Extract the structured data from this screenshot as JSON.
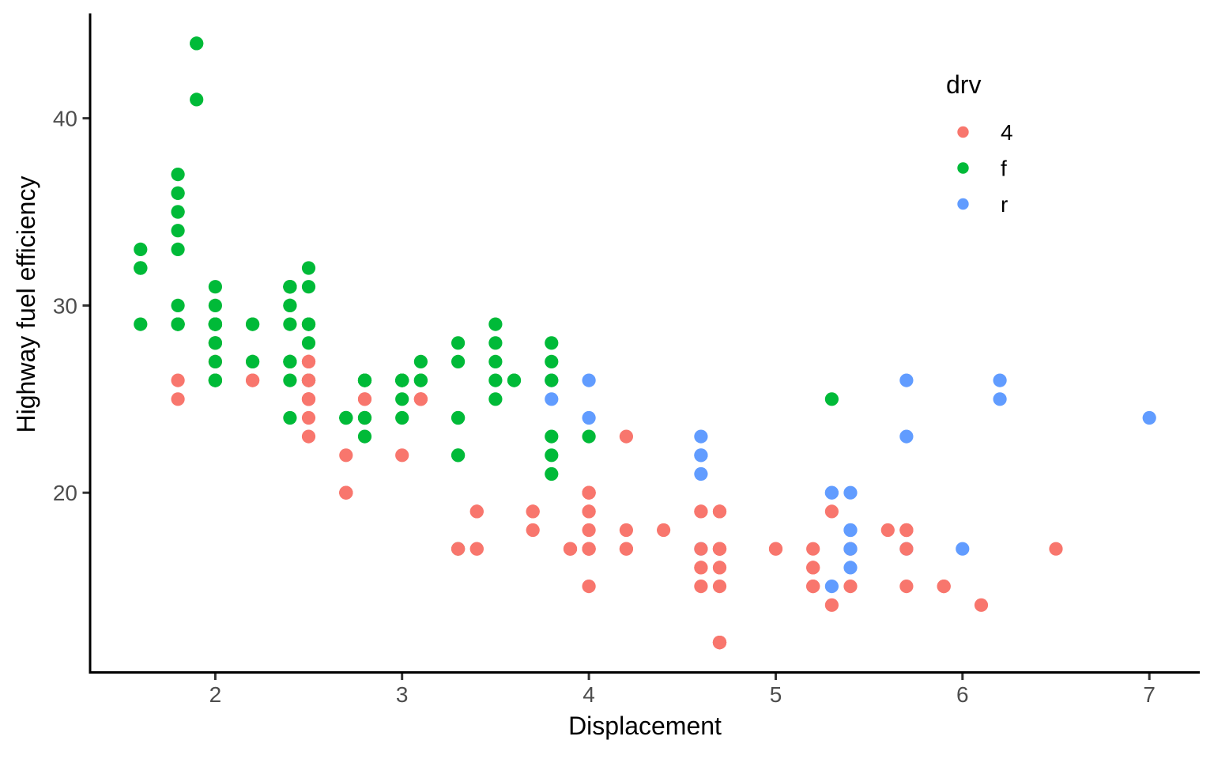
{
  "chart_data": {
    "type": "scatter",
    "title": "",
    "xlabel": "Displacement",
    "ylabel": "Highway fuel efficiency",
    "xlim": [
      1.33,
      7.27
    ],
    "ylim": [
      10.4,
      45.6
    ],
    "x_ticks": [
      2,
      3,
      4,
      5,
      6,
      7
    ],
    "y_ticks": [
      20,
      30,
      40
    ],
    "grid": false,
    "legend": {
      "title": "drv",
      "position": "inside-top-right",
      "entries": [
        {
          "label": "4",
          "color": "#F8766D"
        },
        {
          "label": "f",
          "color": "#00BA38"
        },
        {
          "label": "r",
          "color": "#619CFF"
        }
      ]
    },
    "groups": {
      "4": "#F8766D",
      "f": "#00BA38",
      "r": "#619CFF"
    },
    "points": [
      [
        1.8,
        29,
        "f"
      ],
      [
        1.8,
        29,
        "f"
      ],
      [
        2,
        31,
        "f"
      ],
      [
        2,
        30,
        "f"
      ],
      [
        2.8,
        26,
        "f"
      ],
      [
        2.8,
        26,
        "f"
      ],
      [
        3.1,
        27,
        "f"
      ],
      [
        1.8,
        26,
        "4"
      ],
      [
        1.8,
        25,
        "4"
      ],
      [
        2,
        28,
        "4"
      ],
      [
        2,
        27,
        "4"
      ],
      [
        2.8,
        25,
        "4"
      ],
      [
        2.8,
        25,
        "4"
      ],
      [
        3.1,
        25,
        "4"
      ],
      [
        3.1,
        25,
        "4"
      ],
      [
        2.8,
        24,
        "4"
      ],
      [
        3.1,
        25,
        "4"
      ],
      [
        4.2,
        23,
        "4"
      ],
      [
        5.3,
        20,
        "r"
      ],
      [
        5.3,
        15,
        "r"
      ],
      [
        5.3,
        20,
        "r"
      ],
      [
        5.7,
        17,
        "r"
      ],
      [
        6,
        17,
        "r"
      ],
      [
        5.7,
        26,
        "r"
      ],
      [
        5.7,
        23,
        "r"
      ],
      [
        6.2,
        26,
        "r"
      ],
      [
        6.2,
        25,
        "r"
      ],
      [
        7,
        24,
        "r"
      ],
      [
        5.3,
        19,
        "4"
      ],
      [
        5.3,
        14,
        "4"
      ],
      [
        5.7,
        15,
        "4"
      ],
      [
        6.5,
        17,
        "4"
      ],
      [
        2.4,
        27,
        "f"
      ],
      [
        2.4,
        30,
        "f"
      ],
      [
        3.1,
        26,
        "f"
      ],
      [
        3.5,
        29,
        "f"
      ],
      [
        3.6,
        26,
        "f"
      ],
      [
        2.4,
        24,
        "f"
      ],
      [
        3,
        24,
        "f"
      ],
      [
        3.3,
        22,
        "f"
      ],
      [
        3.3,
        22,
        "f"
      ],
      [
        3.3,
        17,
        "f"
      ],
      [
        3.3,
        24,
        "f"
      ],
      [
        3.3,
        24,
        "f"
      ],
      [
        3.8,
        22,
        "f"
      ],
      [
        3.8,
        21,
        "f"
      ],
      [
        3.8,
        23,
        "f"
      ],
      [
        4,
        23,
        "f"
      ],
      [
        3.7,
        19,
        "4"
      ],
      [
        3.7,
        18,
        "4"
      ],
      [
        3.9,
        17,
        "4"
      ],
      [
        3.9,
        17,
        "4"
      ],
      [
        4.7,
        19,
        "4"
      ],
      [
        4.7,
        19,
        "4"
      ],
      [
        4.7,
        12,
        "4"
      ],
      [
        5.2,
        17,
        "4"
      ],
      [
        5.2,
        15,
        "4"
      ],
      [
        3.9,
        17,
        "4"
      ],
      [
        4.7,
        17,
        "4"
      ],
      [
        4.7,
        12,
        "4"
      ],
      [
        4.7,
        17,
        "4"
      ],
      [
        5.2,
        16,
        "4"
      ],
      [
        5.7,
        18,
        "4"
      ],
      [
        5.9,
        15,
        "4"
      ],
      [
        4.7,
        16,
        "4"
      ],
      [
        4.7,
        12,
        "4"
      ],
      [
        4.7,
        17,
        "4"
      ],
      [
        4.7,
        17,
        "4"
      ],
      [
        4.7,
        16,
        "4"
      ],
      [
        4.7,
        12,
        "4"
      ],
      [
        5.2,
        15,
        "4"
      ],
      [
        5.2,
        16,
        "4"
      ],
      [
        5.7,
        17,
        "4"
      ],
      [
        5.9,
        15,
        "4"
      ],
      [
        4.6,
        17,
        "r"
      ],
      [
        5.4,
        17,
        "r"
      ],
      [
        5.4,
        18,
        "r"
      ],
      [
        4,
        17,
        "4"
      ],
      [
        4,
        17,
        "4"
      ],
      [
        4,
        17,
        "4"
      ],
      [
        4,
        19,
        "4"
      ],
      [
        4.6,
        19,
        "4"
      ],
      [
        5,
        17,
        "4"
      ],
      [
        4.2,
        17,
        "4"
      ],
      [
        4.2,
        17,
        "4"
      ],
      [
        4.6,
        16,
        "4"
      ],
      [
        4.6,
        16,
        "4"
      ],
      [
        4.6,
        17,
        "4"
      ],
      [
        5.4,
        15,
        "4"
      ],
      [
        5.4,
        17,
        "4"
      ],
      [
        3.8,
        26,
        "r"
      ],
      [
        3.8,
        25,
        "r"
      ],
      [
        4,
        26,
        "r"
      ],
      [
        4,
        24,
        "r"
      ],
      [
        4.6,
        21,
        "r"
      ],
      [
        4.6,
        22,
        "r"
      ],
      [
        4.6,
        23,
        "r"
      ],
      [
        4.6,
        22,
        "r"
      ],
      [
        5.4,
        20,
        "r"
      ],
      [
        1.6,
        33,
        "f"
      ],
      [
        1.6,
        32,
        "f"
      ],
      [
        1.6,
        32,
        "f"
      ],
      [
        1.6,
        29,
        "f"
      ],
      [
        1.6,
        32,
        "f"
      ],
      [
        1.8,
        34,
        "f"
      ],
      [
        1.8,
        36,
        "f"
      ],
      [
        1.8,
        36,
        "f"
      ],
      [
        2,
        29,
        "f"
      ],
      [
        2.4,
        26,
        "f"
      ],
      [
        2.4,
        27,
        "f"
      ],
      [
        2.4,
        30,
        "f"
      ],
      [
        2.4,
        31,
        "f"
      ],
      [
        2.5,
        26,
        "f"
      ],
      [
        2.5,
        26,
        "f"
      ],
      [
        3.3,
        28,
        "f"
      ],
      [
        2,
        26,
        "f"
      ],
      [
        2,
        29,
        "f"
      ],
      [
        2,
        28,
        "f"
      ],
      [
        2,
        27,
        "f"
      ],
      [
        2.7,
        24,
        "f"
      ],
      [
        2.7,
        24,
        "f"
      ],
      [
        2.7,
        24,
        "f"
      ],
      [
        3,
        22,
        "4"
      ],
      [
        3.7,
        19,
        "4"
      ],
      [
        4,
        20,
        "4"
      ],
      [
        4.7,
        17,
        "4"
      ],
      [
        4.7,
        12,
        "4"
      ],
      [
        4.7,
        19,
        "4"
      ],
      [
        5.7,
        18,
        "4"
      ],
      [
        6.1,
        14,
        "4"
      ],
      [
        4,
        15,
        "4"
      ],
      [
        4.2,
        18,
        "4"
      ],
      [
        4.4,
        18,
        "4"
      ],
      [
        4.6,
        15,
        "4"
      ],
      [
        5.4,
        17,
        "r"
      ],
      [
        5.4,
        16,
        "r"
      ],
      [
        5.4,
        18,
        "r"
      ],
      [
        4,
        17,
        "4"
      ],
      [
        4,
        19,
        "4"
      ],
      [
        4.6,
        19,
        "4"
      ],
      [
        5,
        17,
        "4"
      ],
      [
        2.4,
        29,
        "f"
      ],
      [
        2.4,
        27,
        "f"
      ],
      [
        2.5,
        31,
        "f"
      ],
      [
        2.5,
        32,
        "f"
      ],
      [
        3.5,
        27,
        "f"
      ],
      [
        3.5,
        26,
        "f"
      ],
      [
        3,
        26,
        "f"
      ],
      [
        3,
        25,
        "f"
      ],
      [
        3.5,
        25,
        "f"
      ],
      [
        3.3,
        17,
        "4"
      ],
      [
        3.3,
        17,
        "4"
      ],
      [
        4,
        20,
        "4"
      ],
      [
        5.6,
        18,
        "4"
      ],
      [
        3.1,
        26,
        "f"
      ],
      [
        3.8,
        26,
        "f"
      ],
      [
        3.8,
        27,
        "f"
      ],
      [
        3.8,
        28,
        "f"
      ],
      [
        5.3,
        25,
        "f"
      ],
      [
        2.5,
        25,
        "4"
      ],
      [
        2.5,
        24,
        "4"
      ],
      [
        2.5,
        27,
        "4"
      ],
      [
        2.5,
        25,
        "4"
      ],
      [
        2.5,
        26,
        "4"
      ],
      [
        2.5,
        23,
        "4"
      ],
      [
        2.2,
        26,
        "4"
      ],
      [
        2.2,
        26,
        "4"
      ],
      [
        2.5,
        26,
        "4"
      ],
      [
        2.5,
        26,
        "4"
      ],
      [
        2.5,
        25,
        "4"
      ],
      [
        2.5,
        27,
        "4"
      ],
      [
        2.5,
        25,
        "4"
      ],
      [
        2.5,
        27,
        "4"
      ],
      [
        2.7,
        20,
        "4"
      ],
      [
        2.7,
        20,
        "4"
      ],
      [
        3.4,
        19,
        "4"
      ],
      [
        3.4,
        17,
        "4"
      ],
      [
        4,
        20,
        "4"
      ],
      [
        4.7,
        17,
        "4"
      ],
      [
        2.2,
        29,
        "f"
      ],
      [
        2.2,
        27,
        "f"
      ],
      [
        2.4,
        31,
        "f"
      ],
      [
        2.4,
        31,
        "f"
      ],
      [
        3,
        26,
        "f"
      ],
      [
        3,
        26,
        "f"
      ],
      [
        3.5,
        28,
        "f"
      ],
      [
        2.2,
        27,
        "f"
      ],
      [
        2.2,
        29,
        "f"
      ],
      [
        2.4,
        31,
        "f"
      ],
      [
        2.4,
        31,
        "f"
      ],
      [
        3,
        26,
        "f"
      ],
      [
        3,
        26,
        "f"
      ],
      [
        3.3,
        27,
        "f"
      ],
      [
        1.8,
        30,
        "f"
      ],
      [
        1.8,
        33,
        "f"
      ],
      [
        1.8,
        35,
        "f"
      ],
      [
        1.8,
        37,
        "f"
      ],
      [
        1.8,
        35,
        "f"
      ],
      [
        4.7,
        15,
        "4"
      ],
      [
        5.7,
        18,
        "4"
      ],
      [
        2.7,
        20,
        "4"
      ],
      [
        2.7,
        20,
        "4"
      ],
      [
        2.7,
        22,
        "4"
      ],
      [
        3.4,
        17,
        "4"
      ],
      [
        3.4,
        19,
        "4"
      ],
      [
        4,
        18,
        "4"
      ],
      [
        4,
        20,
        "4"
      ],
      [
        2,
        29,
        "f"
      ],
      [
        2,
        26,
        "f"
      ],
      [
        2,
        29,
        "f"
      ],
      [
        2,
        29,
        "f"
      ],
      [
        2.8,
        24,
        "f"
      ],
      [
        1.9,
        44,
        "f"
      ],
      [
        2,
        29,
        "f"
      ],
      [
        2,
        26,
        "f"
      ],
      [
        2,
        29,
        "f"
      ],
      [
        2,
        29,
        "f"
      ],
      [
        2.5,
        29,
        "f"
      ],
      [
        2.5,
        29,
        "f"
      ],
      [
        2.8,
        23,
        "f"
      ],
      [
        2.8,
        24,
        "f"
      ],
      [
        1.9,
        44,
        "f"
      ],
      [
        1.9,
        41,
        "f"
      ],
      [
        2,
        29,
        "f"
      ],
      [
        2,
        26,
        "f"
      ],
      [
        2.5,
        28,
        "f"
      ],
      [
        2.5,
        29,
        "f"
      ],
      [
        1.8,
        29,
        "f"
      ],
      [
        1.8,
        29,
        "f"
      ],
      [
        2,
        28,
        "f"
      ],
      [
        2,
        29,
        "f"
      ],
      [
        2.8,
        26,
        "f"
      ],
      [
        2.8,
        26,
        "f"
      ],
      [
        3.6,
        26,
        "f"
      ]
    ]
  }
}
